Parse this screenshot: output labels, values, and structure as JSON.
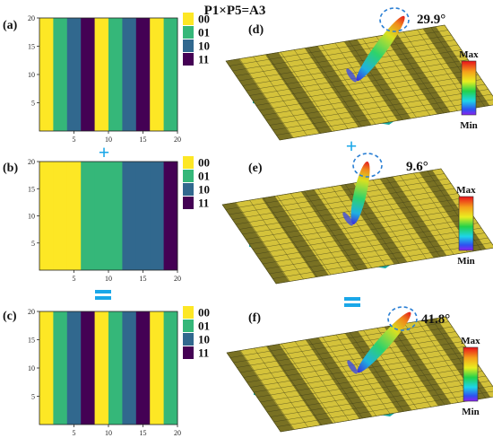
{
  "figure_title": "P1×P5=A3",
  "operators": {
    "plus": "+",
    "equals": "="
  },
  "colors": {
    "00": "#fde725",
    "01": "#35b779",
    "10": "#31688e",
    "11": "#440154",
    "accent": "#1aa7e8",
    "board": "#d4c23a",
    "substrate": "#1aa7a0"
  },
  "scale_labels": {
    "max": "Max",
    "min": "Min"
  },
  "chart_data": [
    {
      "type": "heatmap",
      "panel": "(a)",
      "xlim": [
        0,
        20
      ],
      "ylim": [
        0,
        20
      ],
      "x_ticks": [
        "5",
        "10",
        "15",
        "20"
      ],
      "y_ticks": [
        "5",
        "10",
        "15",
        "20"
      ],
      "legend": [
        "00",
        "01",
        "10",
        "11"
      ],
      "columns": [
        "00",
        "01",
        "10",
        "11",
        "00",
        "01",
        "10",
        "11",
        "00",
        "01"
      ]
    },
    {
      "type": "heatmap",
      "panel": "(b)",
      "xlim": [
        0,
        20
      ],
      "ylim": [
        0,
        20
      ],
      "x_ticks": [
        "5",
        "10",
        "15",
        "20"
      ],
      "y_ticks": [
        "5",
        "10",
        "15",
        "20"
      ],
      "legend": [
        "00",
        "01",
        "10",
        "11"
      ],
      "columns": [
        "00",
        "00",
        "00",
        "01",
        "01",
        "01",
        "10",
        "10",
        "10",
        "11"
      ]
    },
    {
      "type": "heatmap",
      "panel": "(c)",
      "xlim": [
        0,
        20
      ],
      "ylim": [
        0,
        20
      ],
      "x_ticks": [
        "5",
        "10",
        "15",
        "20"
      ],
      "y_ticks": [
        "5",
        "10",
        "15",
        "20"
      ],
      "legend": [
        "00",
        "01",
        "10",
        "11"
      ],
      "columns": [
        "00",
        "01",
        "10",
        "11",
        "00",
        "01",
        "10",
        "11",
        "00",
        "01"
      ]
    }
  ],
  "beams": [
    {
      "panel": "(d)",
      "angle": "29.9°"
    },
    {
      "panel": "(e)",
      "angle": "9.6°"
    },
    {
      "panel": "(f)",
      "angle": "41.8°"
    }
  ]
}
